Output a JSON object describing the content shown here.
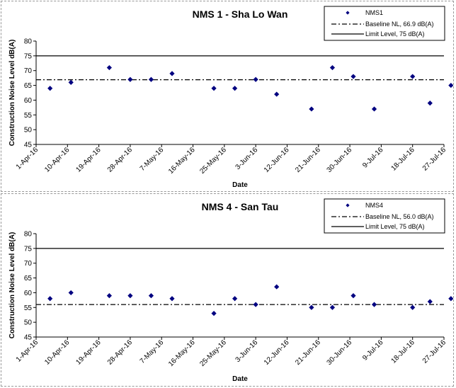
{
  "chart_data": [
    {
      "type": "scatter",
      "title": "NMS 1 - Sha Lo Wan",
      "xlabel": "Date",
      "ylabel": "Construction Noise Level  dB(A)",
      "ylim": [
        45,
        80
      ],
      "yticks": [
        45,
        50,
        55,
        60,
        65,
        70,
        75,
        80
      ],
      "xlim": [
        "2016-04-01",
        "2016-07-27"
      ],
      "xtick_labels": [
        "1-Apr-16",
        "10-Apr-16",
        "19-Apr-16",
        "28-Apr-16",
        "7-May-16",
        "16-May-16",
        "25-May-16",
        "3-Jun-16",
        "12-Jun-16",
        "21-Jun-16",
        "30-Jun-16",
        "9-Jul-16",
        "18-Jul-16",
        "27-Jul-16"
      ],
      "grid": false,
      "legend_position": "top-right",
      "series": [
        {
          "name": "NMS1",
          "marker": "diamond",
          "color": "#000080",
          "points": [
            {
              "x": "2016-04-05",
              "y": 64
            },
            {
              "x": "2016-04-11",
              "y": 66
            },
            {
              "x": "2016-04-22",
              "y": 71
            },
            {
              "x": "2016-04-28",
              "y": 67
            },
            {
              "x": "2016-05-04",
              "y": 67
            },
            {
              "x": "2016-05-10",
              "y": 69
            },
            {
              "x": "2016-05-22",
              "y": 64
            },
            {
              "x": "2016-05-28",
              "y": 64
            },
            {
              "x": "2016-06-03",
              "y": 67
            },
            {
              "x": "2016-06-09",
              "y": 62
            },
            {
              "x": "2016-06-19",
              "y": 57
            },
            {
              "x": "2016-06-25",
              "y": 71
            },
            {
              "x": "2016-07-01",
              "y": 68
            },
            {
              "x": "2016-07-07",
              "y": 57
            },
            {
              "x": "2016-07-18",
              "y": 68
            },
            {
              "x": "2016-07-23",
              "y": 59
            },
            {
              "x": "2016-07-29",
              "y": 65
            }
          ]
        }
      ],
      "reference_lines": [
        {
          "name": "Baseline NL, 66.9 dB(A)",
          "y": 66.9,
          "style": "dash-dot",
          "color": "#000000"
        },
        {
          "name": "Limit Level, 75 dB(A)",
          "y": 75,
          "style": "solid",
          "color": "#000000"
        }
      ]
    },
    {
      "type": "scatter",
      "title": "NMS 4 - San Tau",
      "xlabel": "Date",
      "ylabel": "Construction Noise Level  dB(A)",
      "ylim": [
        45,
        80
      ],
      "yticks": [
        45,
        50,
        55,
        60,
        65,
        70,
        75,
        80
      ],
      "xlim": [
        "2016-04-01",
        "2016-07-27"
      ],
      "xtick_labels": [
        "1-Apr-16",
        "10-Apr-16",
        "19-Apr-16",
        "28-Apr-16",
        "7-May-16",
        "16-May-16",
        "25-May-16",
        "3-Jun-16",
        "12-Jun-16",
        "21-Jun-16",
        "30-Jun-16",
        "9-Jul-16",
        "18-Jul-16",
        "27-Jul-16"
      ],
      "grid": false,
      "legend_position": "top-right",
      "series": [
        {
          "name": "NMS4",
          "marker": "diamond",
          "color": "#000080",
          "points": [
            {
              "x": "2016-04-05",
              "y": 58
            },
            {
              "x": "2016-04-11",
              "y": 60
            },
            {
              "x": "2016-04-22",
              "y": 59
            },
            {
              "x": "2016-04-28",
              "y": 59
            },
            {
              "x": "2016-05-04",
              "y": 59
            },
            {
              "x": "2016-05-10",
              "y": 58
            },
            {
              "x": "2016-05-22",
              "y": 53
            },
            {
              "x": "2016-05-28",
              "y": 58
            },
            {
              "x": "2016-06-03",
              "y": 56
            },
            {
              "x": "2016-06-09",
              "y": 62
            },
            {
              "x": "2016-06-19",
              "y": 55
            },
            {
              "x": "2016-06-25",
              "y": 55
            },
            {
              "x": "2016-07-01",
              "y": 59
            },
            {
              "x": "2016-07-07",
              "y": 56
            },
            {
              "x": "2016-07-18",
              "y": 55
            },
            {
              "x": "2016-07-23",
              "y": 57
            },
            {
              "x": "2016-07-29",
              "y": 58
            }
          ]
        }
      ],
      "reference_lines": [
        {
          "name": "Baseline NL, 56.0 dB(A)",
          "y": 56.0,
          "style": "dash-dot",
          "color": "#000000"
        },
        {
          "name": "Limit Level, 75 dB(A)",
          "y": 75,
          "style": "solid",
          "color": "#000000"
        }
      ]
    }
  ]
}
